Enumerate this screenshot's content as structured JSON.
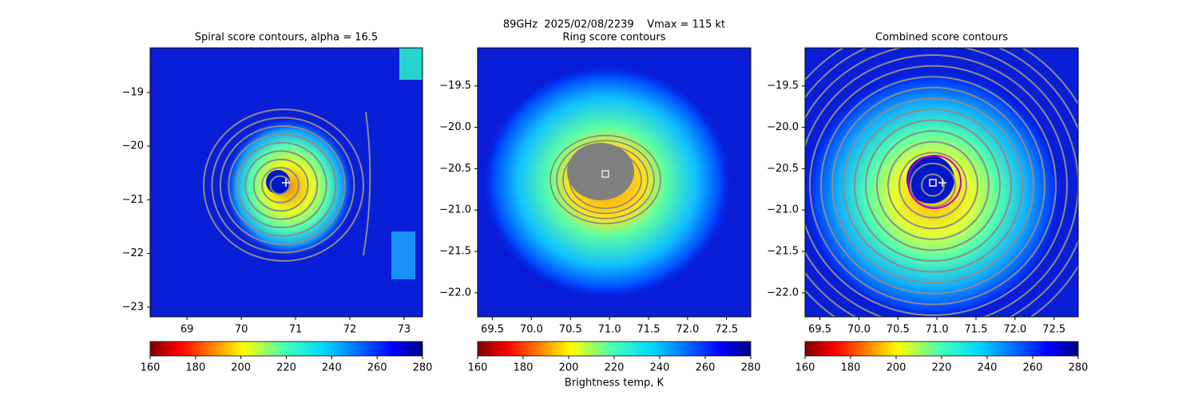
{
  "title": "89GHz  2025/02/08/2239    Vmax = 115 kt",
  "colorbar_label": "Brightness temp, K",
  "chart_data": [
    {
      "type": "heatmap",
      "title": "Spiral score contours, alpha = 16.5",
      "xlim": [
        68.32,
        73.34
      ],
      "ylim": [
        -23.18,
        -18.17
      ],
      "xticks": [
        69,
        70,
        71,
        72,
        73
      ],
      "yticks": [
        {
          "value": -19,
          "label": "−19"
        },
        {
          "value": -20,
          "label": "−20"
        },
        {
          "value": -21,
          "label": "−21"
        },
        {
          "value": -22,
          "label": "−22"
        },
        {
          "value": -23,
          "label": "−23"
        }
      ],
      "colormap": "jet_r",
      "clim": [
        160,
        280
      ],
      "cticks": [
        160,
        180,
        200,
        220,
        240,
        260,
        280
      ]
    },
    {
      "type": "heatmap",
      "title": "Ring score contours",
      "xlim": [
        69.31,
        72.81
      ],
      "ylim": [
        -22.29,
        -19.04
      ],
      "xticks": [
        {
          "value": 69.5,
          "label": "69.5"
        },
        {
          "value": 70,
          "label": "70.0"
        },
        {
          "value": 70.5,
          "label": "70.5"
        },
        {
          "value": 71,
          "label": "71.0"
        },
        {
          "value": 71.5,
          "label": "71.5"
        },
        {
          "value": 72,
          "label": "72.0"
        },
        {
          "value": 72.5,
          "label": "72.5"
        }
      ],
      "yticks": [
        {
          "value": -19.5,
          "label": "−19.5"
        },
        {
          "value": -20,
          "label": "−20.0"
        },
        {
          "value": -20.5,
          "label": "−20.5"
        },
        {
          "value": -21,
          "label": "−21.0"
        },
        {
          "value": -21.5,
          "label": "−21.5"
        },
        {
          "value": -22,
          "label": "−22.0"
        }
      ],
      "colormap": "jet_r",
      "clim": [
        160,
        280
      ],
      "cticks": [
        160,
        180,
        200,
        220,
        240,
        260,
        280
      ]
    },
    {
      "type": "heatmap",
      "title": "Combined score contours",
      "xlim": [
        69.31,
        72.81
      ],
      "ylim": [
        -22.29,
        -19.04
      ],
      "xticks": [
        {
          "value": 69.5,
          "label": "69.5"
        },
        {
          "value": 70,
          "label": "70.0"
        },
        {
          "value": 70.5,
          "label": "70.5"
        },
        {
          "value": 71,
          "label": "71.0"
        },
        {
          "value": 71.5,
          "label": "71.5"
        },
        {
          "value": 72,
          "label": "72.0"
        },
        {
          "value": 72.5,
          "label": "72.5"
        }
      ],
      "yticks": [
        {
          "value": -19.5,
          "label": "−19.5"
        },
        {
          "value": -20,
          "label": "−20.0"
        },
        {
          "value": -20.5,
          "label": "−20.5"
        },
        {
          "value": -21,
          "label": "−21.0"
        },
        {
          "value": -21.5,
          "label": "−21.5"
        },
        {
          "value": -22,
          "label": "−22.0"
        }
      ],
      "colormap": "jet_r",
      "clim": [
        160,
        280
      ],
      "cticks": [
        160,
        180,
        200,
        220,
        240,
        260,
        280
      ]
    }
  ]
}
